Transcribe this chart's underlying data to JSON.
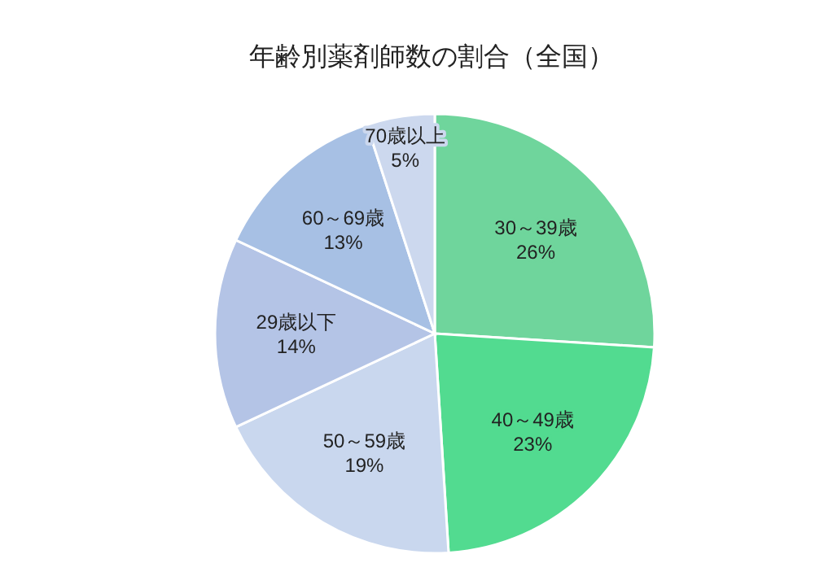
{
  "chart_data": {
    "type": "pie",
    "title": "年齢別薬剤師数の割合（全国）",
    "categories": [
      "30～39歳",
      "40～49歳",
      "50～59歳",
      "29歳以下",
      "60～69歳",
      "70歳以上"
    ],
    "values": [
      26,
      23,
      19,
      14,
      13,
      5
    ],
    "colors": [
      "#6fd59c",
      "#52db90",
      "#c9d7ee",
      "#b4c4e6",
      "#a7c0e4",
      "#ccd8ee"
    ],
    "value_labels": [
      "26%",
      "23%",
      "19%",
      "14%",
      "13%",
      "5%"
    ]
  }
}
